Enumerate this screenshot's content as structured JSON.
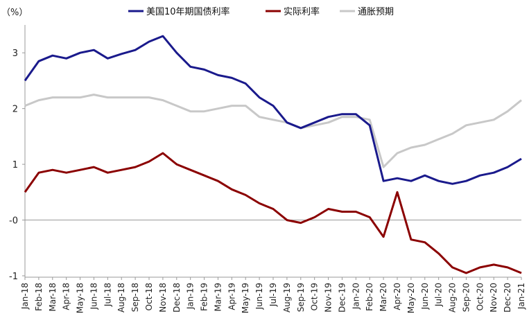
{
  "chart_data": {
    "type": "line",
    "unit_label": "（%）",
    "ylim": [
      -1,
      3.5
    ],
    "y_ticks": [
      {
        "value": 3,
        "label": "3",
        "color": "#222222"
      },
      {
        "value": 2,
        "label": "2",
        "color": "#222222"
      },
      {
        "value": 1,
        "label": "1",
        "color": "#222222"
      },
      {
        "value": 0,
        "label": "-0",
        "color": "#c00000"
      },
      {
        "value": -1,
        "label": "-1",
        "color": "#222222"
      }
    ],
    "x_ticks": [
      "Jan-18",
      "Feb-18",
      "Mar-18",
      "Apr-18",
      "May-18",
      "Jun-18",
      "Jul-18",
      "Aug-18",
      "Sep-18",
      "Oct-18",
      "Nov-18",
      "Dec-18",
      "Jan-19",
      "Feb-19",
      "Mar-19",
      "Apr-19",
      "May-19",
      "Jun-19",
      "Jul-19",
      "Aug-19",
      "Sep-19",
      "Oct-19",
      "Nov-19",
      "Dec-19",
      "Jan-20",
      "Feb-20",
      "Mar-20",
      "Apr-20",
      "May-20",
      "Jun-20",
      "Jul-20",
      "Aug-20",
      "Sep-20",
      "Oct-20",
      "Nov-20",
      "Dec-20",
      "Jan-21"
    ],
    "legend_position": "top",
    "grid": false,
    "series": [
      {
        "name": "美国10年期国债利率",
        "color": "#1a1a8c",
        "x": [
          "Jan-18",
          "Feb-18",
          "Mar-18",
          "Apr-18",
          "May-18",
          "Jun-18",
          "Jul-18",
          "Aug-18",
          "Sep-18",
          "Oct-18",
          "Nov-18",
          "Dec-18",
          "Jan-19",
          "Feb-19",
          "Mar-19",
          "Apr-19",
          "May-19",
          "Jun-19",
          "Jul-19",
          "Aug-19",
          "Sep-19",
          "Oct-19",
          "Nov-19",
          "Dec-19",
          "Jan-20",
          "Feb-20",
          "Mar-20",
          "Apr-20",
          "May-20",
          "Jun-20",
          "Jul-20",
          "Aug-20",
          "Sep-20",
          "Oct-20",
          "Nov-20",
          "Dec-20",
          "Jan-21"
        ],
        "values": [
          2.5,
          2.85,
          2.95,
          2.9,
          3.0,
          3.05,
          2.9,
          2.98,
          3.05,
          3.2,
          3.3,
          3.0,
          2.75,
          2.7,
          2.6,
          2.55,
          2.45,
          2.2,
          2.05,
          1.75,
          1.65,
          1.75,
          1.85,
          1.9,
          1.9,
          1.7,
          0.7,
          0.75,
          0.7,
          0.8,
          0.7,
          0.65,
          0.7,
          0.8,
          0.85,
          0.95,
          1.1
        ]
      },
      {
        "name": "实际利率",
        "color": "#8b0000",
        "x": [
          "Jan-18",
          "Feb-18",
          "Mar-18",
          "Apr-18",
          "May-18",
          "Jun-18",
          "Jul-18",
          "Aug-18",
          "Sep-18",
          "Oct-18",
          "Nov-18",
          "Dec-18",
          "Jan-19",
          "Feb-19",
          "Mar-19",
          "Apr-19",
          "May-19",
          "Jun-19",
          "Jul-19",
          "Aug-19",
          "Sep-19",
          "Oct-19",
          "Nov-19",
          "Dec-19",
          "Jan-20",
          "Feb-20",
          "Mar-20",
          "Apr-20",
          "May-20",
          "Jun-20",
          "Jul-20",
          "Aug-20",
          "Sep-20",
          "Oct-20",
          "Nov-20",
          "Dec-20",
          "Jan-21"
        ],
        "values": [
          0.5,
          0.85,
          0.9,
          0.85,
          0.9,
          0.95,
          0.85,
          0.9,
          0.95,
          1.05,
          1.2,
          1.0,
          0.9,
          0.8,
          0.7,
          0.55,
          0.45,
          0.3,
          0.2,
          0.0,
          -0.05,
          0.05,
          0.2,
          0.15,
          0.15,
          0.05,
          -0.3,
          0.5,
          -0.35,
          -0.4,
          -0.6,
          -0.85,
          -0.95,
          -0.85,
          -0.8,
          -0.85,
          -0.95
        ]
      },
      {
        "name": "通胀预期",
        "color": "#c8c8c8",
        "x": [
          "Jan-18",
          "Feb-18",
          "Mar-18",
          "Apr-18",
          "May-18",
          "Jun-18",
          "Jul-18",
          "Aug-18",
          "Sep-18",
          "Oct-18",
          "Nov-18",
          "Dec-18",
          "Jan-19",
          "Feb-19",
          "Mar-19",
          "Apr-19",
          "May-19",
          "Jun-19",
          "Jul-19",
          "Aug-19",
          "Sep-19",
          "Oct-19",
          "Nov-19",
          "Dec-19",
          "Jan-20",
          "Feb-20",
          "Mar-20",
          "Apr-20",
          "May-20",
          "Jun-20",
          "Jul-20",
          "Aug-20",
          "Sep-20",
          "Oct-20",
          "Nov-20",
          "Dec-20",
          "Jan-21"
        ],
        "values": [
          2.05,
          2.15,
          2.2,
          2.2,
          2.2,
          2.25,
          2.2,
          2.2,
          2.2,
          2.2,
          2.15,
          2.05,
          1.95,
          1.95,
          2.0,
          2.05,
          2.05,
          1.85,
          1.8,
          1.75,
          1.65,
          1.7,
          1.75,
          1.85,
          1.85,
          1.8,
          0.95,
          1.2,
          1.3,
          1.35,
          1.45,
          1.55,
          1.7,
          1.75,
          1.8,
          1.95,
          2.15
        ]
      }
    ]
  }
}
